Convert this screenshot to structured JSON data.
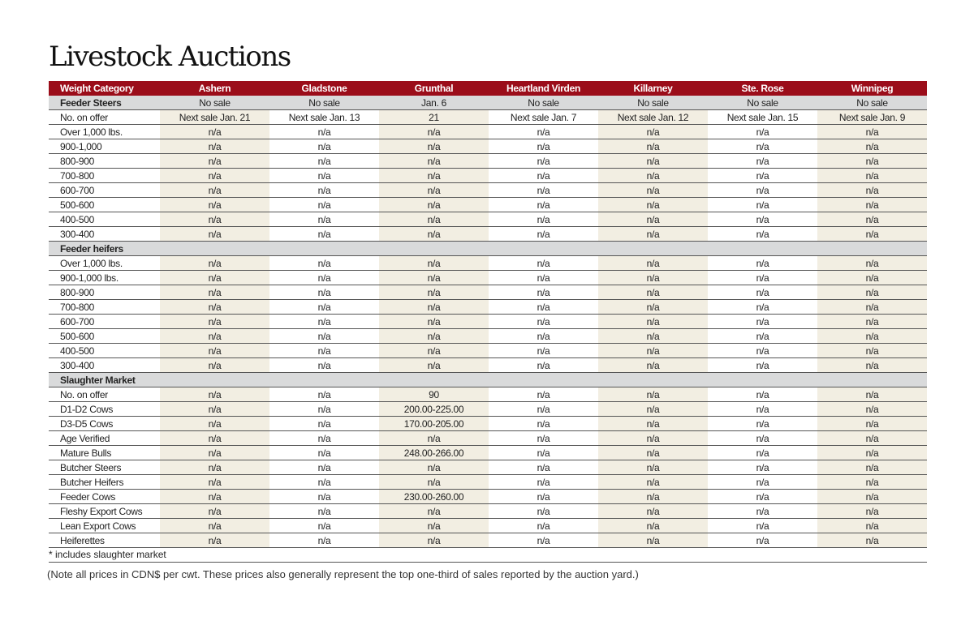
{
  "title": "Livestock Auctions",
  "columns": [
    "Weight Category",
    "Ashern",
    "Gladstone",
    "Grunthal",
    "Heartland Virden",
    "Killarney",
    "Ste. Rose",
    "Winnipeg"
  ],
  "colors": {
    "header": "#9b0d1a",
    "section": "#d9dadb",
    "shade": "#f2eee2"
  },
  "rows": [
    {
      "section": true,
      "cells": [
        "Feeder Steers",
        "No sale",
        "No sale",
        "Jan. 6",
        "No sale",
        "No sale",
        "No sale",
        "No sale"
      ]
    },
    {
      "cells": [
        "No. on offer",
        "Next sale Jan. 21",
        "Next sale Jan. 13",
        "21",
        "Next sale Jan. 7",
        "Next sale Jan. 12",
        "Next sale Jan. 15",
        "Next sale Jan. 9"
      ]
    },
    {
      "cells": [
        "Over 1,000 lbs.",
        "n/a",
        "n/a",
        "n/a",
        "n/a",
        "n/a",
        "n/a",
        "n/a"
      ]
    },
    {
      "cells": [
        "900-1,000",
        "n/a",
        "n/a",
        "n/a",
        "n/a",
        "n/a",
        "n/a",
        "n/a"
      ]
    },
    {
      "cells": [
        "800-900",
        "n/a",
        "n/a",
        "n/a",
        "n/a",
        "n/a",
        "n/a",
        "n/a"
      ]
    },
    {
      "cells": [
        "700-800",
        "n/a",
        "n/a",
        "n/a",
        "n/a",
        "n/a",
        "n/a",
        "n/a"
      ]
    },
    {
      "cells": [
        "600-700",
        "n/a",
        "n/a",
        "n/a",
        "n/a",
        "n/a",
        "n/a",
        "n/a"
      ]
    },
    {
      "cells": [
        "500-600",
        "n/a",
        "n/a",
        "n/a",
        "n/a",
        "n/a",
        "n/a",
        "n/a"
      ]
    },
    {
      "cells": [
        "400-500",
        "n/a",
        "n/a",
        "n/a",
        "n/a",
        "n/a",
        "n/a",
        "n/a"
      ]
    },
    {
      "cells": [
        "300-400",
        "n/a",
        "n/a",
        "n/a",
        "n/a",
        "n/a",
        "n/a",
        "n/a"
      ]
    },
    {
      "section": true,
      "cells": [
        "Feeder heifers",
        "",
        "",
        "",
        "",
        "",
        "",
        ""
      ]
    },
    {
      "cells": [
        "Over 1,000 lbs.",
        "n/a",
        "n/a",
        "n/a",
        "n/a",
        "n/a",
        "n/a",
        "n/a"
      ]
    },
    {
      "cells": [
        "900-1,000 lbs.",
        "n/a",
        "n/a",
        "n/a",
        "n/a",
        "n/a",
        "n/a",
        "n/a"
      ]
    },
    {
      "cells": [
        "800-900",
        "n/a",
        "n/a",
        "n/a",
        "n/a",
        "n/a",
        "n/a",
        "n/a"
      ]
    },
    {
      "cells": [
        "700-800",
        "n/a",
        "n/a",
        "n/a",
        "n/a",
        "n/a",
        "n/a",
        "n/a"
      ]
    },
    {
      "cells": [
        "600-700",
        "n/a",
        "n/a",
        "n/a",
        "n/a",
        "n/a",
        "n/a",
        "n/a"
      ]
    },
    {
      "cells": [
        "500-600",
        "n/a",
        "n/a",
        "n/a",
        "n/a",
        "n/a",
        "n/a",
        "n/a"
      ]
    },
    {
      "cells": [
        "400-500",
        "n/a",
        "n/a",
        "n/a",
        "n/a",
        "n/a",
        "n/a",
        "n/a"
      ]
    },
    {
      "cells": [
        "300-400",
        "n/a",
        "n/a",
        "n/a",
        "n/a",
        "n/a",
        "n/a",
        "n/a"
      ]
    },
    {
      "section": true,
      "cells": [
        "Slaughter Market",
        "",
        "",
        "",
        "",
        "",
        "",
        ""
      ]
    },
    {
      "cells": [
        "No. on offer",
        "n/a",
        "n/a",
        "90",
        "n/a",
        "n/a",
        "n/a",
        "n/a"
      ]
    },
    {
      "cells": [
        "D1-D2 Cows",
        "n/a",
        "n/a",
        "200.00-225.00",
        "n/a",
        "n/a",
        "n/a",
        "n/a"
      ]
    },
    {
      "cells": [
        "D3-D5 Cows",
        "n/a",
        "n/a",
        "170.00-205.00",
        "n/a",
        "n/a",
        "n/a",
        "n/a"
      ]
    },
    {
      "cells": [
        "Age Verified",
        "n/a",
        "n/a",
        "n/a",
        "n/a",
        "n/a",
        "n/a",
        "n/a"
      ]
    },
    {
      "cells": [
        "Mature Bulls",
        "n/a",
        "n/a",
        "248.00-266.00",
        "n/a",
        "n/a",
        "n/a",
        "n/a"
      ]
    },
    {
      "cells": [
        "Butcher Steers",
        "n/a",
        "n/a",
        "n/a",
        "n/a",
        "n/a",
        "n/a",
        "n/a"
      ]
    },
    {
      "cells": [
        "Butcher Heifers",
        "n/a",
        "n/a",
        "n/a",
        "n/a",
        "n/a",
        "n/a",
        "n/a"
      ]
    },
    {
      "cells": [
        "Feeder Cows",
        "n/a",
        "n/a",
        "230.00-260.00",
        "n/a",
        "n/a",
        "n/a",
        "n/a"
      ]
    },
    {
      "cells": [
        "Fleshy Export Cows",
        "n/a",
        "n/a",
        "n/a",
        "n/a",
        "n/a",
        "n/a",
        "n/a"
      ]
    },
    {
      "cells": [
        "Lean Export Cows",
        "n/a",
        "n/a",
        "n/a",
        "n/a",
        "n/a",
        "n/a",
        "n/a"
      ]
    },
    {
      "cells": [
        "Heiferettes",
        "n/a",
        "n/a",
        "n/a",
        "n/a",
        "n/a",
        "n/a",
        "n/a"
      ]
    }
  ],
  "footnote": "* includes slaughter market",
  "note": "(Note all prices in CDN$ per cwt. These prices also generally represent the top one-third of sales reported by the auction yard.)"
}
